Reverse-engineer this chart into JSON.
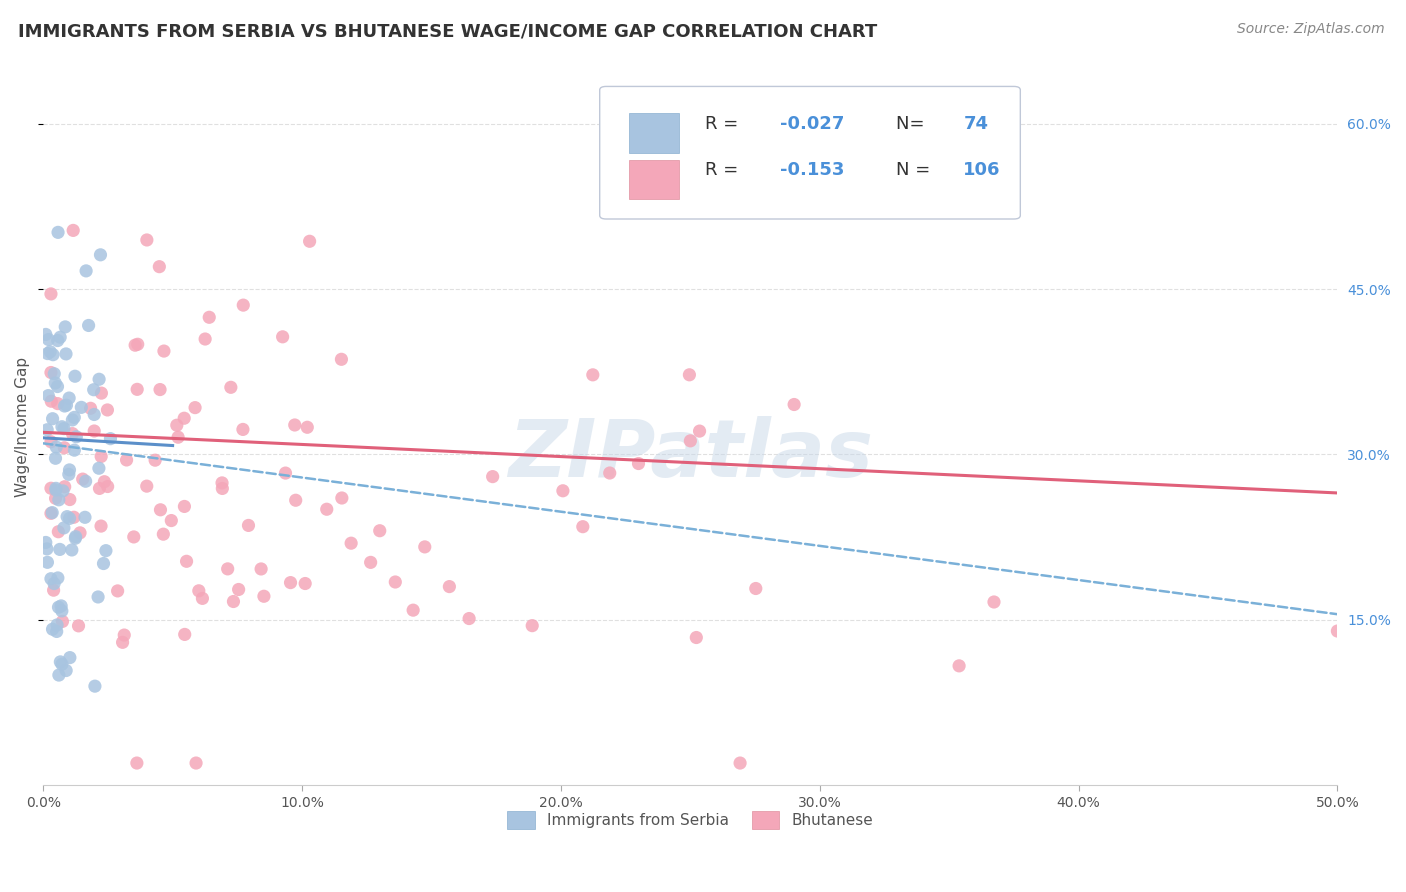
{
  "title": "IMMIGRANTS FROM SERBIA VS BHUTANESE WAGE/INCOME GAP CORRELATION CHART",
  "source": "Source: ZipAtlas.com",
  "ylabel": "Wage/Income Gap",
  "xlim": [
    0.0,
    0.5
  ],
  "ylim": [
    0.0,
    0.65
  ],
  "xticks": [
    0.0,
    0.1,
    0.2,
    0.3,
    0.4,
    0.5
  ],
  "yticks": [
    0.15,
    0.3,
    0.45,
    0.6
  ],
  "ytick_labels": [
    "15.0%",
    "30.0%",
    "45.0%",
    "60.0%"
  ],
  "xtick_labels": [
    "0.0%",
    "10.0%",
    "20.0%",
    "30.0%",
    "40.0%",
    "50.0%"
  ],
  "serbia_color": "#a8c4e0",
  "bhutan_color": "#f4a7b9",
  "serbia_R": -0.027,
  "serbia_N": 74,
  "bhutan_R": -0.153,
  "bhutan_N": 106,
  "serbia_line_color": "#5b8fc9",
  "bhutan_line_color": "#e0607a",
  "dashed_line_color": "#7ab0d8",
  "background_color": "#ffffff",
  "watermark": "ZIPatlas",
  "grid_color": "#e0e0e0",
  "legend_box_color": "#f0f4f8",
  "legend_border_color": "#c0c8d8"
}
